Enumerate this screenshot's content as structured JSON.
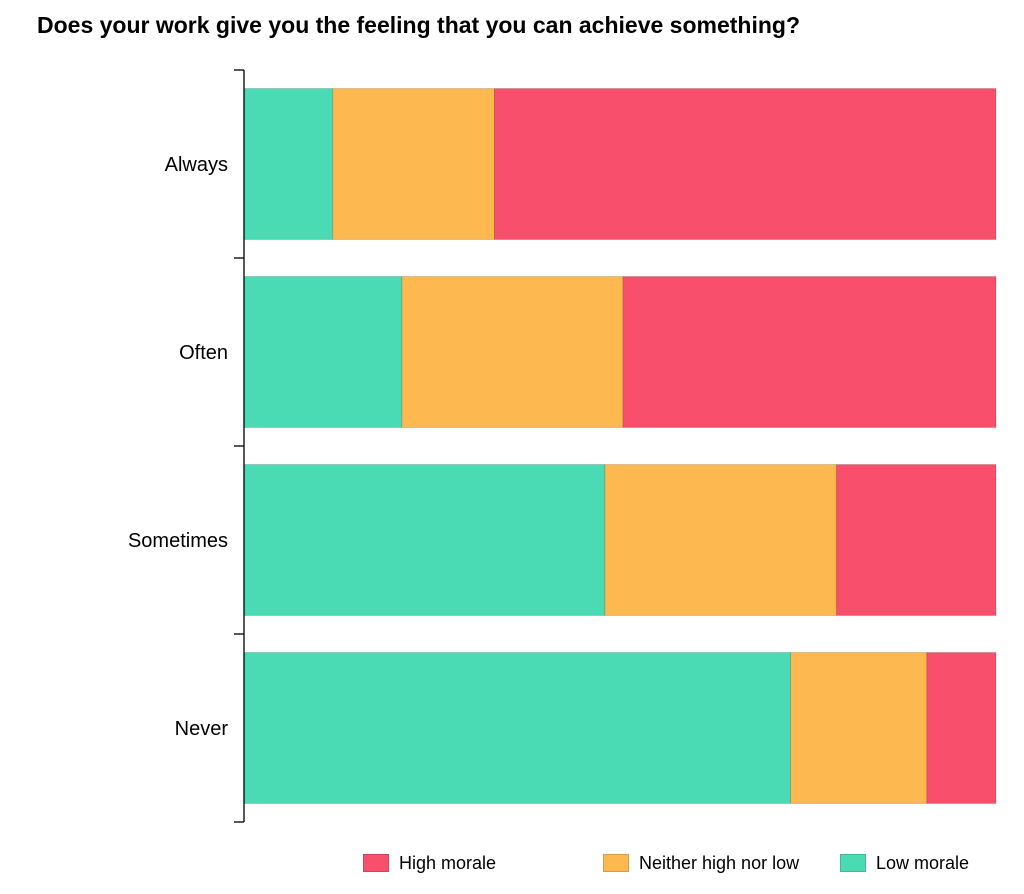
{
  "chart_data": {
    "type": "bar",
    "orientation": "horizontal",
    "stacked": true,
    "normalized": true,
    "title": "Does your work give you the feeling that you can achieve something?",
    "categories": [
      "Always",
      "Often",
      "Sometimes",
      "Never"
    ],
    "series": [
      {
        "name": "Low morale",
        "color": "#4ADBB4",
        "values": [
          0.118,
          0.21,
          0.48,
          0.727
        ]
      },
      {
        "name": "Neither high nor low",
        "color": "#FDB94F",
        "values": [
          0.215,
          0.294,
          0.308,
          0.181
        ]
      },
      {
        "name": "High morale",
        "color": "#F84F6D",
        "values": [
          0.667,
          0.496,
          0.212,
          0.092
        ]
      }
    ],
    "xlim": [
      0,
      1
    ],
    "grid": false,
    "legend": {
      "placement": "bottom",
      "entries": [
        "High morale",
        "Neither high nor low",
        "Low morale"
      ]
    }
  }
}
